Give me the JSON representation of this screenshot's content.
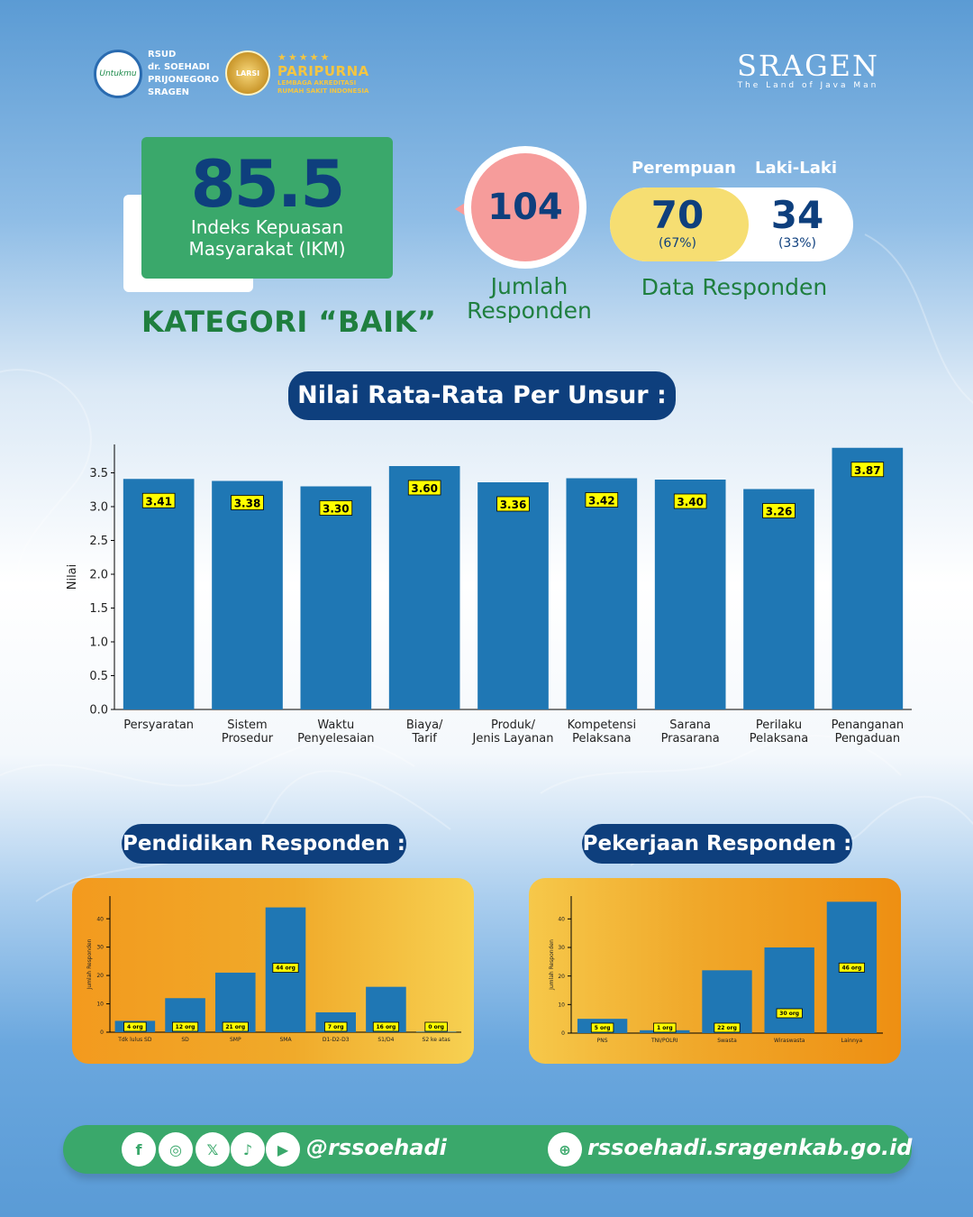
{
  "header": {
    "hospital_line1": "RSUD",
    "hospital_line2": "dr. SOEHADI",
    "hospital_line3": "PRIJONEGORO",
    "hospital_line4": "SRAGEN",
    "logo_text": "Untukmu",
    "larsi_label": "LARSI",
    "accreditation_title": "PARIPURNA",
    "accreditation_line1": "LEMBAGA AKREDITASI",
    "accreditation_line2": "RUMAH SAKIT INDONESIA",
    "stars": "★★★★★",
    "city": "SRAGEN",
    "city_tagline": "The Land of Java Man"
  },
  "ikm": {
    "value": "85.5",
    "label_line1": "Indeks Kepuasan",
    "label_line2": "Masyarakat (IKM)",
    "category": "KATEGORI “BAIK”"
  },
  "respondents": {
    "total": "104",
    "total_label_line1": "Jumlah",
    "total_label_line2": "Responden",
    "female_label": "Perempuan",
    "male_label": "Laki-Laki",
    "female_count": "70",
    "female_pct": "(67%)",
    "male_count": "34",
    "male_pct": "(33%)",
    "data_label": "Data Responden"
  },
  "sections": {
    "main_title": "Nilai Rata-Rata Per Unsur :",
    "education_title": "Pendidikan Responden :",
    "job_title": "Pekerjaan Responden :"
  },
  "footer": {
    "handle": "@rssoehadi",
    "website": "rssoehadi.sragenkab.go.id",
    "icons": [
      "facebook-icon",
      "instagram-icon",
      "x-icon",
      "tiktok-icon",
      "youtube-icon",
      "globe-icon"
    ]
  },
  "colors": {
    "bar": "#1f77b4",
    "label_bg": "#ffff00",
    "navy": "#0e3f7d",
    "green": "#3aa86b"
  },
  "chart_data": [
    {
      "id": "unsur",
      "type": "bar",
      "title": "Nilai Rata-Rata Per Unsur :",
      "ylabel": "Nilai",
      "xlabel": "",
      "ylim": [
        0,
        3.92
      ],
      "yticks": [
        "0.0",
        "0.5",
        "1.0",
        "1.5",
        "2.0",
        "2.5",
        "3.0",
        "3.5"
      ],
      "categories": [
        [
          "Persyaratan"
        ],
        [
          "Sistem",
          "Prosedur"
        ],
        [
          "Waktu",
          "Penyelesaian"
        ],
        [
          "Biaya/",
          "Tarif"
        ],
        [
          "Produk/",
          "Jenis Layanan"
        ],
        [
          "Kompetensi",
          "Pelaksana"
        ],
        [
          "Sarana",
          "Prasarana"
        ],
        [
          "Perilaku",
          "Pelaksana"
        ],
        [
          "Penanganan",
          "Pengaduan"
        ]
      ],
      "values": [
        3.41,
        3.38,
        3.3,
        3.6,
        3.36,
        3.42,
        3.4,
        3.26,
        3.87
      ],
      "data_labels": [
        "3.41",
        "3.38",
        "3.30",
        "3.60",
        "3.36",
        "3.42",
        "3.40",
        "3.26",
        "3.87"
      ]
    },
    {
      "id": "pendidikan",
      "type": "bar",
      "title": "Pendidikan Responden :",
      "ylabel": "Jumlah Responden",
      "ylim": [
        0,
        48
      ],
      "yticks": [
        "0",
        "10",
        "20",
        "30",
        "40"
      ],
      "categories": [
        "Tdk lulus SD",
        "SD",
        "SMP",
        "SMA",
        "D1-D2-D3",
        "S1/D4",
        "S2 ke atas"
      ],
      "values": [
        4,
        12,
        21,
        44,
        7,
        16,
        0
      ],
      "data_labels": [
        "4 org",
        "12 org",
        "21 org",
        "44 org",
        "7 org",
        "16 org",
        "0 org"
      ]
    },
    {
      "id": "pekerjaan",
      "type": "bar",
      "title": "Pekerjaan Responden :",
      "ylabel": "Jumlah Responden",
      "ylim": [
        0,
        48
      ],
      "yticks": [
        "0",
        "10",
        "20",
        "30",
        "40"
      ],
      "categories": [
        "PNS",
        "TNI/POLRI",
        "Swasta",
        "Wiraswasta",
        "Lainnya"
      ],
      "values": [
        5,
        1,
        22,
        30,
        46
      ],
      "data_labels": [
        "5 org",
        "1 org",
        "22 org",
        "30 org",
        "46 org"
      ]
    }
  ]
}
